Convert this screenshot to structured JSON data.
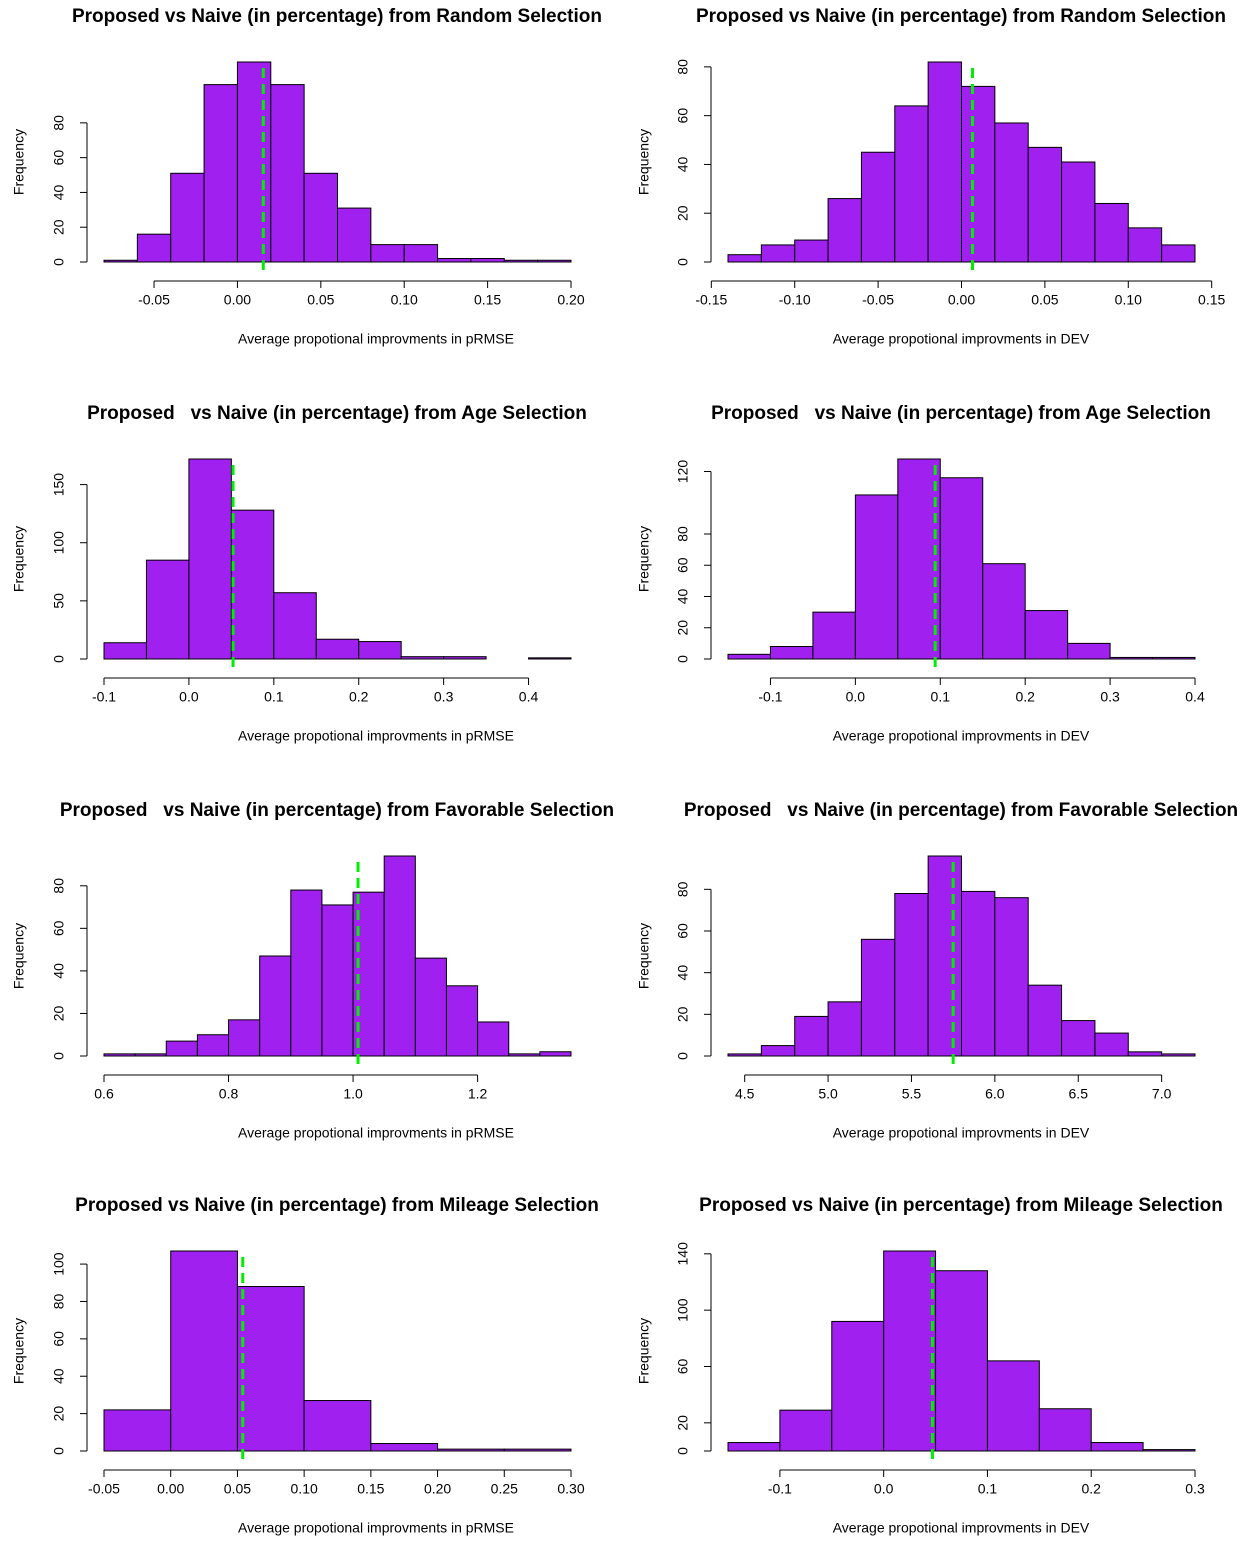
{
  "chart_data": [
    {
      "type": "histogram",
      "title": "Proposed vs Naive (in percentage) from Random Selection",
      "x_label": "Average propotional improvments in pRMSE",
      "y_label": "Frequency",
      "color": "#a020f0",
      "line_color": "#00ee00",
      "bins": [
        -0.08,
        -0.06,
        -0.04,
        -0.02,
        0,
        0.02,
        0.04,
        0.06,
        0.08,
        0.1,
        0.12,
        0.14,
        0.16,
        0.18,
        0.2
      ],
      "values": [
        1,
        16,
        51,
        102,
        115,
        102,
        51,
        31,
        10,
        10,
        2,
        2,
        1,
        1
      ],
      "reference_line": 0.0155,
      "xlim": [
        -0.08,
        0.2
      ],
      "ylim": [
        0,
        115
      ],
      "xticks": [
        -0.05,
        {
          "value": 0,
          "label": "0.00"
        },
        0.05,
        {
          "value": 0.1,
          "label": "0.10"
        },
        0.15,
        {
          "value": 0.2,
          "label": "0.20"
        }
      ],
      "yticks": [
        0,
        20,
        40,
        60,
        80
      ]
    },
    {
      "type": "histogram",
      "title": "Proposed vs Naive (in percentage) from Random Selection",
      "x_label": "Average propotional improvments in DEV",
      "y_label": "Frequency",
      "color": "#a020f0",
      "line_color": "#00ee00",
      "bins": [
        -0.14,
        -0.12,
        -0.1,
        -0.08,
        -0.06,
        -0.04,
        -0.02,
        0,
        0.02,
        0.04,
        0.06,
        0.08,
        0.1,
        0.12,
        0.14
      ],
      "values": [
        3,
        7,
        9,
        26,
        45,
        64,
        82,
        72,
        57,
        47,
        41,
        24,
        14,
        7
      ],
      "reference_line": 0.0066,
      "xlim": [
        -0.14,
        0.14
      ],
      "ylim": [
        0,
        82
      ],
      "xticks": [
        -0.15,
        {
          "value": -0.1,
          "label": "-0.10"
        },
        -0.05,
        {
          "value": 0,
          "label": "0.00"
        },
        0.05,
        {
          "value": 0.1,
          "label": "0.10"
        },
        0.15
      ],
      "yticks": [
        0,
        20,
        40,
        60,
        80
      ]
    },
    {
      "type": "histogram",
      "title": "Proposed   vs Naive (in percentage) from Age Selection",
      "x_label": "Average propotional improvments in pRMSE",
      "y_label": "Frequency",
      "color": "#a020f0",
      "line_color": "#00ee00",
      "bins": [
        -0.1,
        -0.05,
        0,
        0.05,
        0.1,
        0.15,
        0.2,
        0.25,
        0.3,
        0.35,
        0.4,
        0.45
      ],
      "values": [
        14,
        85,
        172,
        128,
        57,
        17,
        15,
        2,
        2,
        0,
        1
      ],
      "reference_line": 0.052,
      "xlim": [
        -0.1,
        0.45
      ],
      "ylim": [
        0,
        172
      ],
      "xticks": [
        -0.1,
        {
          "value": 0,
          "label": "0.0"
        },
        0.1,
        0.2,
        0.3,
        0.4
      ],
      "yticks": [
        0,
        50,
        100,
        150
      ]
    },
    {
      "type": "histogram",
      "title": "Proposed   vs Naive (in percentage) from Age Selection",
      "x_label": "Average propotional improvments in DEV",
      "y_label": "Frequency",
      "color": "#a020f0",
      "line_color": "#00ee00",
      "bins": [
        -0.15,
        -0.1,
        -0.05,
        0,
        0.05,
        0.1,
        0.15,
        0.2,
        0.25,
        0.3,
        0.35,
        0.4
      ],
      "values": [
        3,
        8,
        30,
        105,
        128,
        116,
        61,
        31,
        10,
        1,
        1
      ],
      "reference_line": 0.094,
      "xlim": [
        -0.15,
        0.4
      ],
      "ylim": [
        0,
        128
      ],
      "xticks": [
        -0.1,
        {
          "value": 0,
          "label": "0.0"
        },
        0.1,
        0.2,
        0.3,
        0.4
      ],
      "yticks": [
        0,
        20,
        40,
        60,
        80,
        120
      ]
    },
    {
      "type": "histogram",
      "title": "Proposed   vs Naive (in percentage) from Favorable Selection",
      "x_label": "Average propotional improvments in pRMSE",
      "y_label": "Frequency",
      "color": "#a020f0",
      "line_color": "#00ee00",
      "bins": [
        0.6,
        0.65,
        0.7,
        0.75,
        0.8,
        0.85,
        0.9,
        0.95,
        1,
        1.05,
        1.1,
        1.15,
        1.2,
        1.25,
        1.3,
        1.35
      ],
      "values": [
        1,
        1,
        7,
        10,
        17,
        47,
        78,
        71,
        77,
        94,
        46,
        33,
        16,
        1,
        2
      ],
      "reference_line": 1.008,
      "xlim": [
        0.6,
        1.35
      ],
      "ylim": [
        0,
        94
      ],
      "xticks": [
        0.6,
        0.8,
        {
          "value": 1,
          "label": "1.0"
        },
        1.2
      ],
      "yticks": [
        0,
        20,
        40,
        60,
        80
      ]
    },
    {
      "type": "histogram",
      "title": "Proposed   vs Naive (in percentage) from Favorable Selection",
      "x_label": "Average propotional improvments in DEV",
      "y_label": "Frequency",
      "color": "#a020f0",
      "line_color": "#00ee00",
      "bins": [
        4.4,
        4.6,
        4.8,
        5,
        5.2,
        5.4,
        5.6,
        5.8,
        6,
        6.2,
        6.4,
        6.6,
        6.8,
        7,
        7.2
      ],
      "values": [
        1,
        5,
        19,
        26,
        56,
        78,
        96,
        79,
        76,
        34,
        17,
        11,
        2,
        1
      ],
      "reference_line": 5.75,
      "xlim": [
        4.4,
        7.2
      ],
      "ylim": [
        0,
        96
      ],
      "xticks": [
        4.5,
        {
          "value": 5,
          "label": "5.0"
        },
        5.5,
        {
          "value": 6,
          "label": "6.0"
        },
        6.5,
        {
          "value": 7,
          "label": "7.0"
        }
      ],
      "yticks": [
        0,
        20,
        40,
        60,
        80
      ]
    },
    {
      "type": "histogram",
      "title": "Proposed vs Naive (in percentage) from Mileage Selection",
      "x_label": "Average propotional improvments in pRMSE",
      "y_label": "Frequency",
      "color": "#a020f0",
      "line_color": "#00ee00",
      "bins": [
        -0.05,
        0,
        0.05,
        0.1,
        0.15,
        0.2,
        0.25,
        0.3
      ],
      "values": [
        22,
        107,
        88,
        27,
        4,
        1,
        1
      ],
      "reference_line": 0.054,
      "xlim": [
        -0.05,
        0.3
      ],
      "ylim": [
        0,
        107
      ],
      "xticks": [
        -0.05,
        {
          "value": 0,
          "label": "0.00"
        },
        0.05,
        {
          "value": 0.1,
          "label": "0.10"
        },
        0.15,
        {
          "value": 0.2,
          "label": "0.20"
        },
        0.25,
        {
          "value": 0.3,
          "label": "0.30"
        }
      ],
      "yticks": [
        0,
        20,
        40,
        60,
        80,
        100
      ]
    },
    {
      "type": "histogram",
      "title": "Proposed vs Naive (in percentage) from Mileage Selection",
      "x_label": "Average propotional improvments in DEV",
      "y_label": "Frequency",
      "color": "#a020f0",
      "line_color": "#00ee00",
      "bins": [
        -0.15,
        -0.1,
        -0.05,
        0,
        0.05,
        0.1,
        0.15,
        0.2,
        0.25,
        0.3
      ],
      "values": [
        6,
        29,
        92,
        142,
        128,
        64,
        30,
        6,
        1
      ],
      "reference_line": 0.047,
      "xlim": [
        -0.15,
        0.3
      ],
      "ylim": [
        0,
        142
      ],
      "xticks": [
        -0.1,
        {
          "value": 0,
          "label": "0.0"
        },
        0.1,
        0.2,
        0.3
      ],
      "yticks": [
        0,
        20,
        60,
        100,
        140
      ]
    }
  ]
}
